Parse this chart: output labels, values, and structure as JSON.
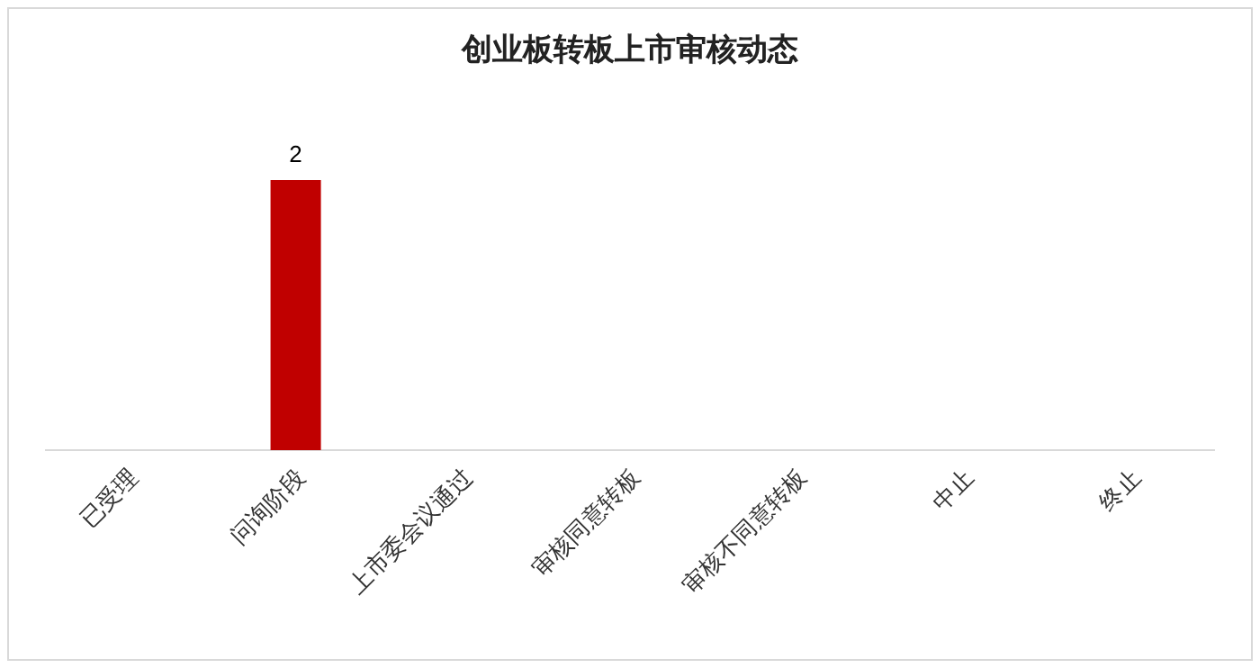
{
  "chart_data": {
    "type": "bar",
    "title": "创业板转板上市审核动态",
    "categories": [
      "已受理",
      "问询阶段",
      "上市委会议通过",
      "审核同意转板",
      "审核不同意转板",
      "中止",
      "终止"
    ],
    "values": [
      0,
      2,
      0,
      0,
      0,
      0,
      0
    ],
    "value_labels": [
      null,
      "2",
      null,
      null,
      null,
      null,
      null
    ],
    "color": "#c00000"
  }
}
